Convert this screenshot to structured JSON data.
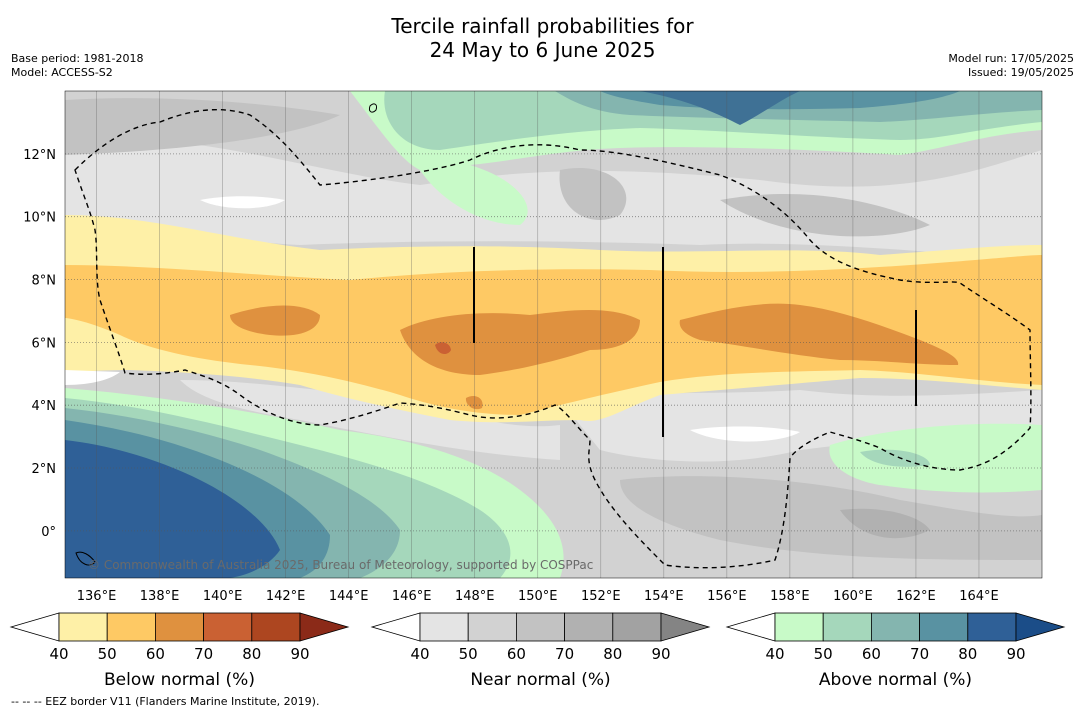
{
  "title_line1": "Tercile rainfall probabilities for",
  "title_line2": "24 May to 6 June 2025",
  "meta_left": {
    "base_period": "Base period: 1981-2018",
    "model": "Model: ACCESS-S2"
  },
  "meta_right": {
    "model_run": "Model run: 17/05/2025",
    "issued": "Issued: 19/05/2025"
  },
  "credit": "© Commonwealth of Australia 2025, Bureau of Meteorology, supported by COSPPac",
  "footnote": "--  --  -- EEZ border V11 (Flanders Marine Institute, 2019).",
  "map_extent": {
    "lon_min": 135,
    "lon_max": 166,
    "lat_min": -1.5,
    "lat_max": 14
  },
  "lon_ticks": [
    {
      "v": 136,
      "label": "136°E"
    },
    {
      "v": 138,
      "label": "138°E"
    },
    {
      "v": 140,
      "label": "140°E"
    },
    {
      "v": 142,
      "label": "142°E"
    },
    {
      "v": 144,
      "label": "144°E"
    },
    {
      "v": 146,
      "label": "146°E"
    },
    {
      "v": 148,
      "label": "148°E"
    },
    {
      "v": 150,
      "label": "150°E"
    },
    {
      "v": 152,
      "label": "152°E"
    },
    {
      "v": 154,
      "label": "154°E"
    },
    {
      "v": 156,
      "label": "156°E"
    },
    {
      "v": 158,
      "label": "158°E"
    },
    {
      "v": 160,
      "label": "160°E"
    },
    {
      "v": 162,
      "label": "162°E"
    },
    {
      "v": 164,
      "label": "164°E"
    }
  ],
  "lat_ticks": [
    {
      "v": 12,
      "label": "12°N"
    },
    {
      "v": 10,
      "label": "10°N"
    },
    {
      "v": 8,
      "label": "8°N"
    },
    {
      "v": 6,
      "label": "6°N"
    },
    {
      "v": 4,
      "label": "4°N"
    },
    {
      "v": 2,
      "label": "2°N"
    },
    {
      "v": 0,
      "label": "0°"
    }
  ],
  "colorbars": [
    {
      "name": "below",
      "title": "Below normal (%)",
      "ticks": [
        "40",
        "50",
        "60",
        "70",
        "80",
        "90"
      ],
      "colors": [
        "#fef0a7",
        "#fec964",
        "#df913f",
        "#ca6133",
        "#ad4620"
      ],
      "extend": "#8b2a18"
    },
    {
      "name": "near",
      "title": "Near normal (%)",
      "ticks": [
        "40",
        "50",
        "60",
        "70",
        "80",
        "90"
      ],
      "colors": [
        "#e4e4e4",
        "#d2d2d2",
        "#c2c2c2",
        "#b1b1b1",
        "#a2a2a2"
      ],
      "extend": "#848484"
    },
    {
      "name": "above",
      "title": "Above normal (%)",
      "ticks": [
        "40",
        "50",
        "60",
        "70",
        "80",
        "90"
      ],
      "colors": [
        "#c8fac8",
        "#a5d7bb",
        "#84b5af",
        "#5992a2",
        "#2f6097"
      ],
      "extend": "#1b4d88"
    }
  ],
  "palette": {
    "white": "#ffffff",
    "eez": "#000000",
    "grid": "#555555"
  }
}
